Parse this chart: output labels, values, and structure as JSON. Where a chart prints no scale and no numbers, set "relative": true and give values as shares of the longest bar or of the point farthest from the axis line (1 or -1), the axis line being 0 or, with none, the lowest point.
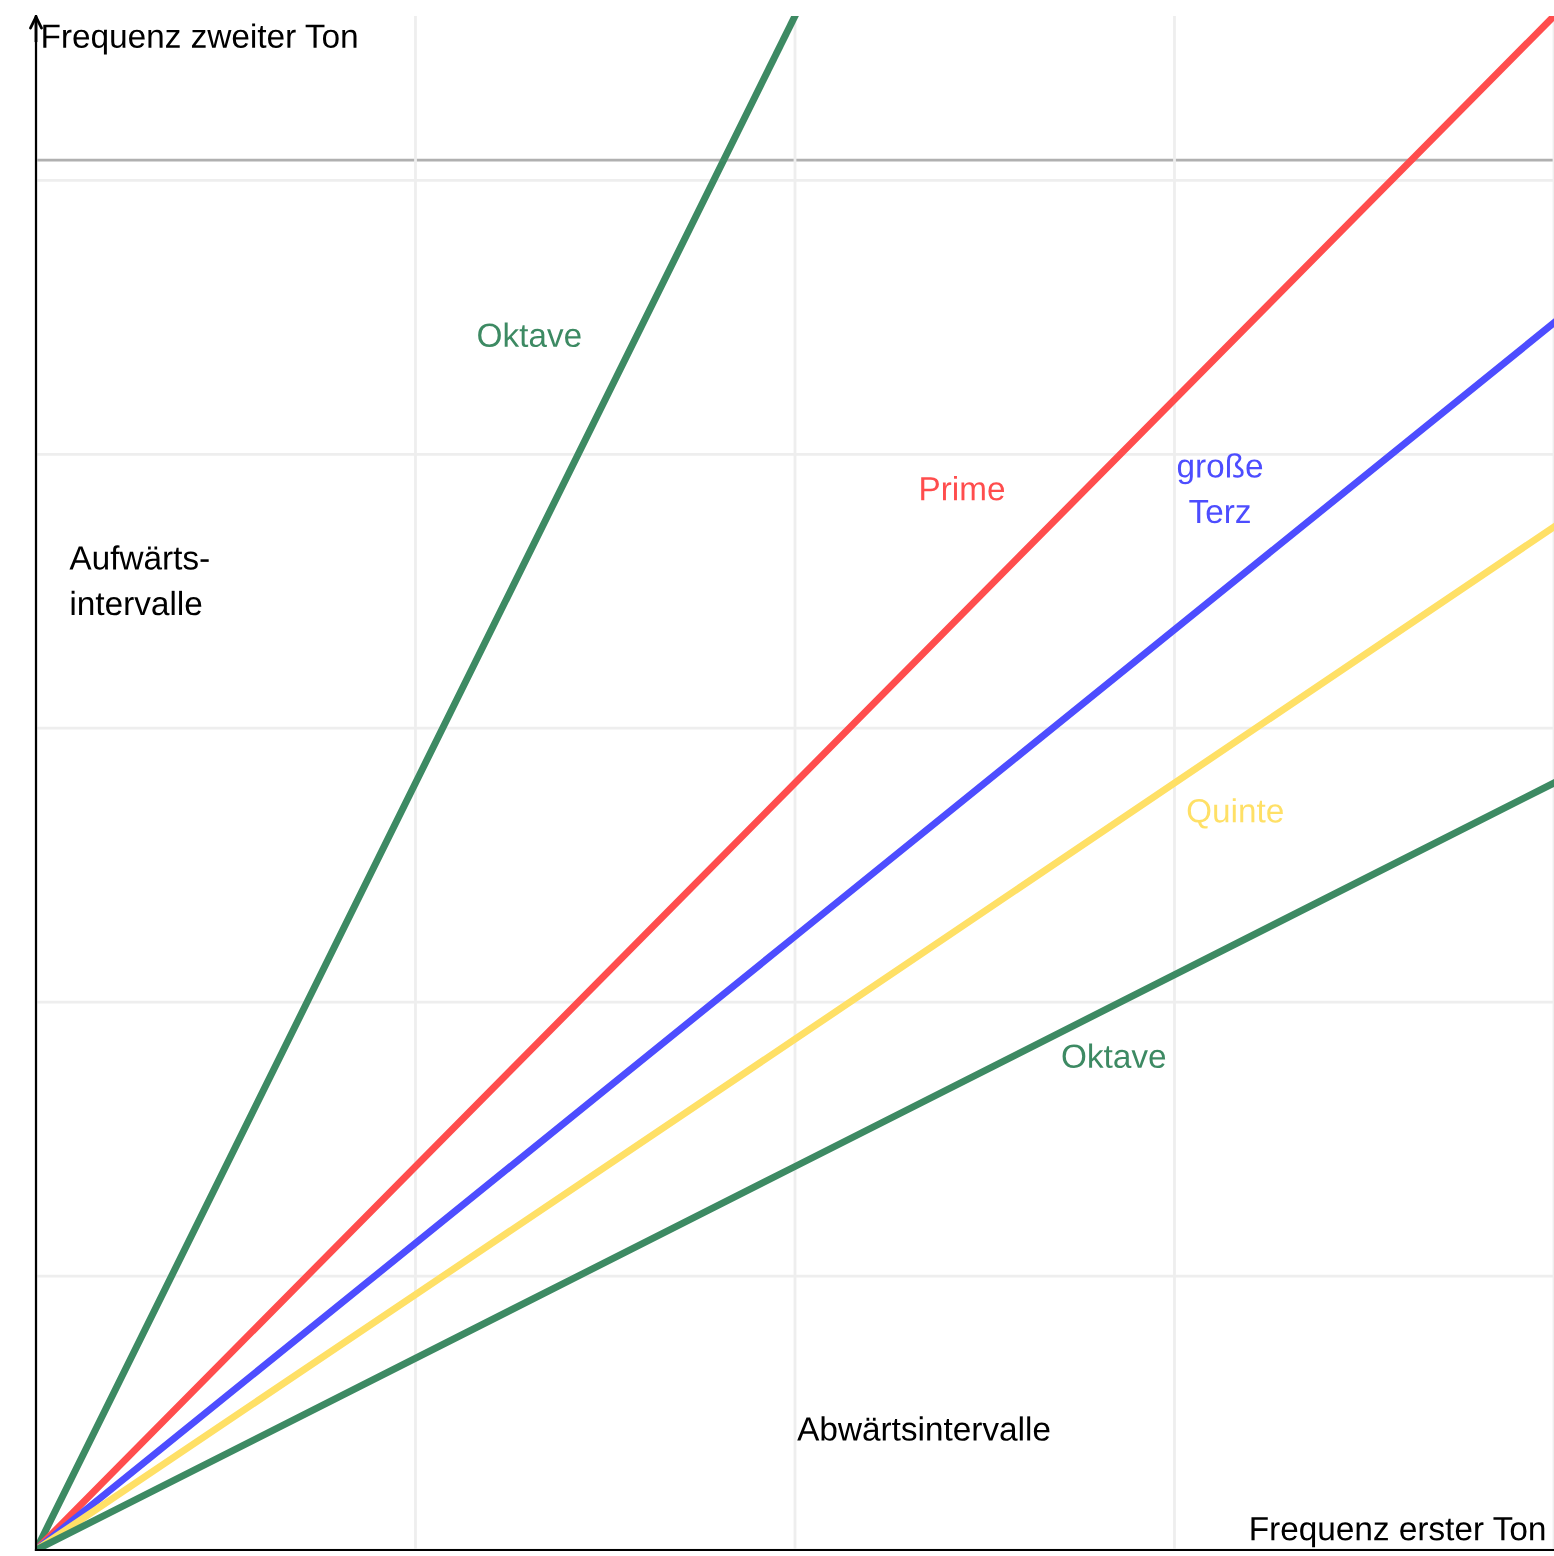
{
  "chart_data": {
    "type": "line",
    "relative": true,
    "xlabel": "Frequenz erster Ton",
    "ylabel": "Frequenz zweiter Ton",
    "categories": [
      null,
      null,
      null
    ],
    "series": [
      {
        "name": "Oktave",
        "color": "#3d8a63",
        "values": [
          0,
          1.0,
          null
        ]
      },
      {
        "name": "Prime",
        "color": "#ff4d4d",
        "values": [
          0,
          0.5,
          1.0
        ]
      },
      {
        "name": "große\nTerz",
        "color": "#4d4dff",
        "values": [
          0,
          0.4,
          0.8
        ]
      },
      {
        "name": "Quinte",
        "color": "#ffe066",
        "values": [
          0,
          0.333,
          0.667
        ]
      },
      {
        "name": "Oktave",
        "color": "#3d8a63",
        "values": [
          0,
          0.25,
          0.5
        ]
      }
    ],
    "annotations": [
      "Aufwärts-\nintervalle",
      "Abwärtsintervalle"
    ],
    "ref_lines": [
      {
        "axis": "y",
        "value": 0.906,
        "color": "#b0b0b0"
      }
    ],
    "grid": true,
    "marker": "none",
    "line_style": "solid",
    "legend": false
  }
}
